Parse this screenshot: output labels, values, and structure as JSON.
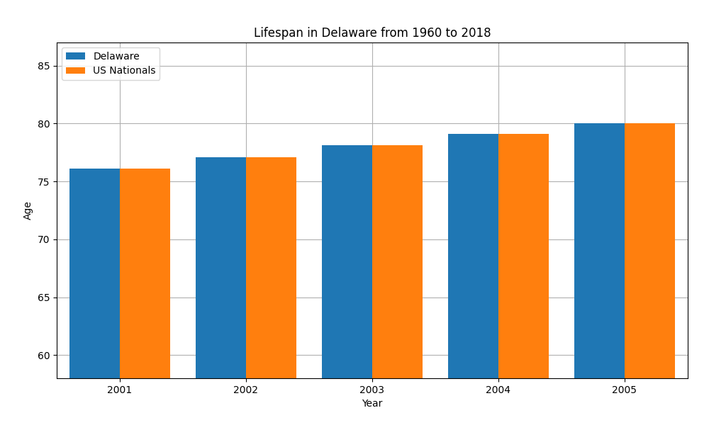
{
  "chart_data": {
    "type": "bar",
    "title": "Lifespan in Delaware from 1960 to 2018",
    "x_label": "Year",
    "y_label": "Age",
    "categories": [
      "2001",
      "2002",
      "2003",
      "2004",
      "2005"
    ],
    "series": [
      {
        "name": "Delaware",
        "values": [
          76.1,
          77.1,
          78.1,
          79.1,
          80.0
        ]
      },
      {
        "name": "US Nationals",
        "values": [
          76.1,
          77.1,
          78.1,
          79.1,
          80.0
        ]
      }
    ],
    "ylim": [
      58,
      87
    ],
    "yticks": [
      60,
      65,
      70,
      75,
      80,
      85
    ],
    "grid": true,
    "legend": "upper left"
  }
}
